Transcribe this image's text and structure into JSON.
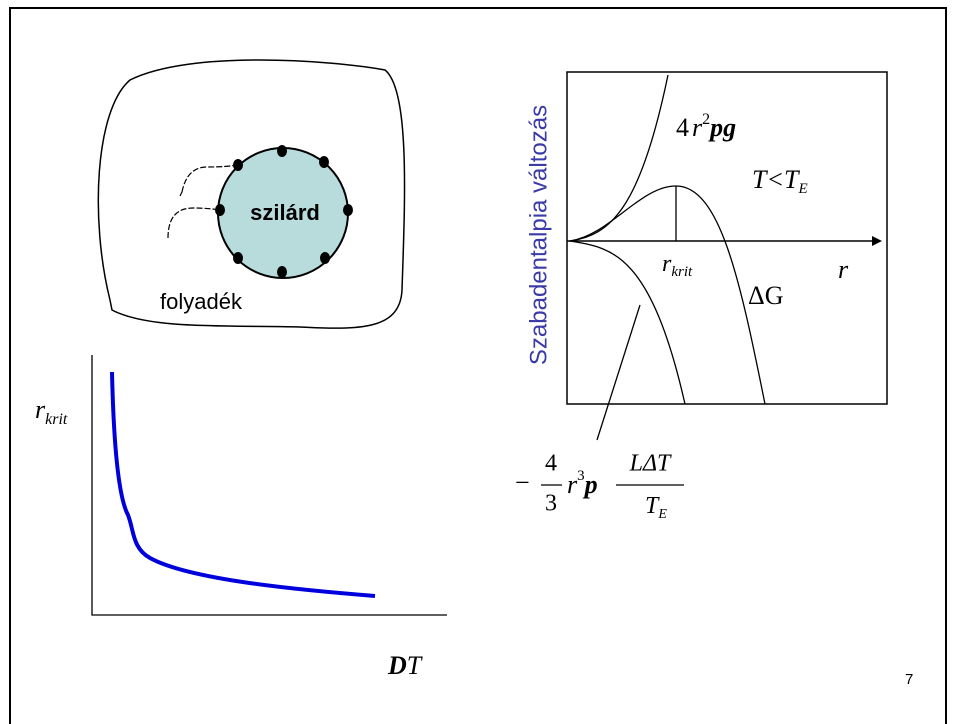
{
  "left_diagram": {
    "solid": "szilárd",
    "liquid": "folyadék"
  },
  "right_graph": {
    "y_axis_label": "Szabadentalpia változás",
    "surface_term": {
      "coef": "4",
      "var": "r",
      "exp": "2",
      "symbols": "pg"
    },
    "condition": {
      "lhs": "T<T",
      "sub": "E"
    },
    "r_crit": {
      "var": "r",
      "sub": "krit"
    },
    "x_axis_label": "r",
    "delta_g": "ΔG",
    "volume_term": {
      "sign": "−",
      "num": "4",
      "den": "3",
      "var": "r",
      "exp": "3",
      "symbol": "p",
      "frac_num": "LΔT",
      "frac_den": "T",
      "frac_den_sub": "E"
    }
  },
  "bottom_graph": {
    "y_label": {
      "var": "r",
      "sub": "krit"
    },
    "x_label": {
      "d": "D",
      "t": "T"
    }
  },
  "page_number": "7"
}
